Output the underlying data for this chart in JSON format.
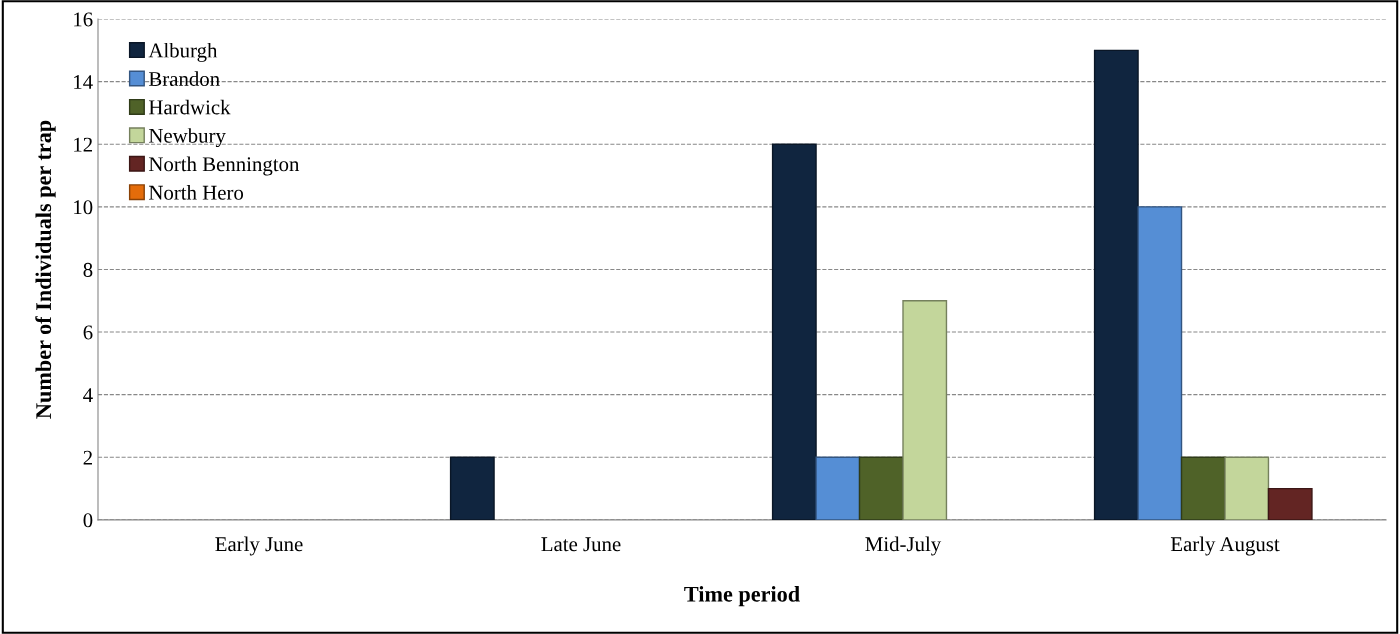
{
  "chart_data": {
    "type": "bar",
    "xlabel": "Time period",
    "ylabel": "Number of Individuals per trap",
    "categories": [
      "Early June",
      "Late June",
      "Mid-July",
      "Early August"
    ],
    "series": [
      {
        "name": "Alburgh",
        "color": "#10253f",
        "values": [
          0,
          2,
          12,
          15
        ]
      },
      {
        "name": "Brandon",
        "color": "#558ed5",
        "values": [
          0,
          0,
          2,
          10
        ]
      },
      {
        "name": "Hardwick",
        "color": "#4f6228",
        "values": [
          0,
          0,
          2,
          2
        ]
      },
      {
        "name": "Newbury",
        "color": "#c3d69b",
        "values": [
          0,
          0,
          7,
          2
        ]
      },
      {
        "name": "North Bennington",
        "color": "#632523",
        "values": [
          0,
          0,
          0,
          1
        ]
      },
      {
        "name": "North Hero",
        "color": "#e46c0a",
        "values": [
          0,
          0,
          0,
          0
        ]
      }
    ],
    "ylim": [
      0,
      16
    ],
    "yticks": [
      0,
      2,
      4,
      6,
      8,
      10,
      12,
      14,
      16
    ],
    "grid": "y",
    "legend": "top left"
  }
}
